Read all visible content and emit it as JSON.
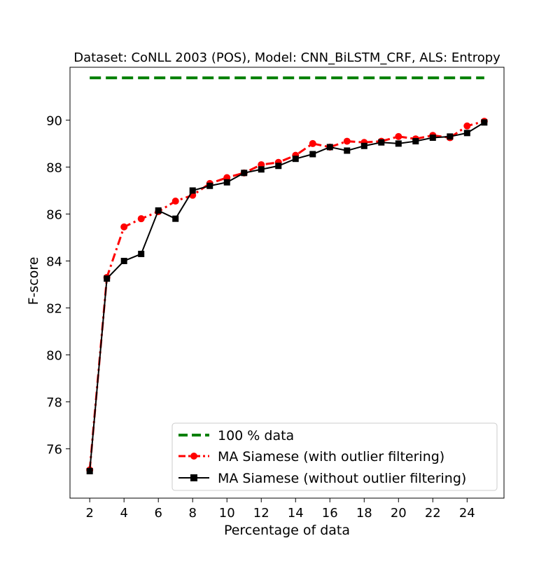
{
  "chart_data": {
    "type": "line",
    "title": "Dataset: CoNLL 2003 (POS), Model: CNN_BiLSTM_CRF, ALS: Entropy",
    "xlabel": "Percentage of data",
    "ylabel": "F-score",
    "xlim": [
      0.85,
      26.15
    ],
    "ylim": [
      73.9,
      92.25
    ],
    "xticks": [
      2,
      4,
      6,
      8,
      10,
      12,
      14,
      16,
      18,
      20,
      22,
      24
    ],
    "yticks": [
      76,
      78,
      80,
      82,
      84,
      86,
      88,
      90
    ],
    "grid": false,
    "legend_position": "lower-right",
    "series": [
      {
        "name": "100 % data",
        "color": "#008000",
        "style": "dashed",
        "marker": "none",
        "x": [
          2,
          25
        ],
        "y": [
          91.8,
          91.8
        ]
      },
      {
        "name": "MA Siamese (with outlier filtering)",
        "color": "#ff0000",
        "style": "dashdot",
        "marker": "circle",
        "x": [
          2,
          3,
          4,
          5,
          6,
          7,
          8,
          9,
          10,
          11,
          12,
          13,
          14,
          15,
          16,
          17,
          18,
          19,
          20,
          21,
          22,
          23,
          24,
          25
        ],
        "y": [
          75.1,
          83.3,
          85.45,
          85.8,
          86.1,
          86.55,
          86.8,
          87.3,
          87.55,
          87.75,
          88.1,
          88.2,
          88.5,
          89.0,
          88.85,
          89.1,
          89.05,
          89.1,
          89.3,
          89.2,
          89.35,
          89.25,
          89.75,
          89.95
        ]
      },
      {
        "name": "MA Siamese (without outlier filtering)",
        "color": "#000000",
        "style": "solid",
        "marker": "square",
        "x": [
          2,
          3,
          4,
          5,
          6,
          7,
          8,
          9,
          10,
          11,
          12,
          13,
          14,
          15,
          16,
          17,
          18,
          19,
          20,
          21,
          22,
          23,
          24,
          25
        ],
        "y": [
          75.05,
          83.25,
          84.0,
          84.3,
          86.15,
          85.8,
          87.0,
          87.2,
          87.35,
          87.75,
          87.9,
          88.05,
          88.35,
          88.55,
          88.85,
          88.7,
          88.9,
          89.05,
          89.0,
          89.1,
          89.25,
          89.3,
          89.45,
          89.9
        ]
      }
    ]
  }
}
